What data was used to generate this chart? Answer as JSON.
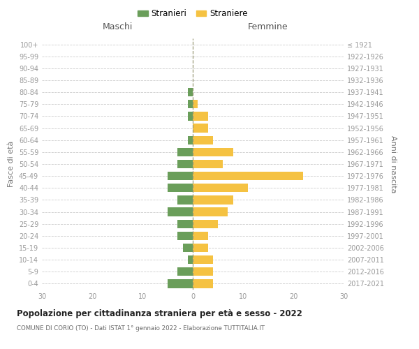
{
  "age_groups": [
    "0-4",
    "5-9",
    "10-14",
    "15-19",
    "20-24",
    "25-29",
    "30-34",
    "35-39",
    "40-44",
    "45-49",
    "50-54",
    "55-59",
    "60-64",
    "65-69",
    "70-74",
    "75-79",
    "80-84",
    "85-89",
    "90-94",
    "95-99",
    "100+"
  ],
  "birth_years": [
    "2017-2021",
    "2012-2016",
    "2007-2011",
    "2002-2006",
    "1997-2001",
    "1992-1996",
    "1987-1991",
    "1982-1986",
    "1977-1981",
    "1972-1976",
    "1967-1971",
    "1962-1966",
    "1957-1961",
    "1952-1956",
    "1947-1951",
    "1942-1946",
    "1937-1941",
    "1932-1936",
    "1927-1931",
    "1922-1926",
    "≤ 1921"
  ],
  "males": [
    5,
    3,
    1,
    2,
    3,
    3,
    5,
    3,
    5,
    5,
    3,
    3,
    1,
    0,
    1,
    1,
    1,
    0,
    0,
    0,
    0
  ],
  "females": [
    4,
    4,
    4,
    3,
    3,
    5,
    7,
    8,
    11,
    22,
    6,
    8,
    4,
    3,
    3,
    1,
    0,
    0,
    0,
    0,
    0
  ],
  "male_color": "#6a9e5a",
  "female_color": "#f5c242",
  "background_color": "#ffffff",
  "grid_color": "#cccccc",
  "title": "Popolazione per cittadinanza straniera per età e sesso - 2022",
  "subtitle": "COMUNE DI CORIO (TO) - Dati ISTAT 1° gennaio 2022 - Elaborazione TUTTITALIA.IT",
  "ylabel_left": "Fasce di età",
  "ylabel_right": "Anni di nascita",
  "label_maschi": "Maschi",
  "label_femmine": "Femmine",
  "legend_male": "Stranieri",
  "legend_female": "Straniere",
  "xlim": 30,
  "bar_height": 0.72
}
